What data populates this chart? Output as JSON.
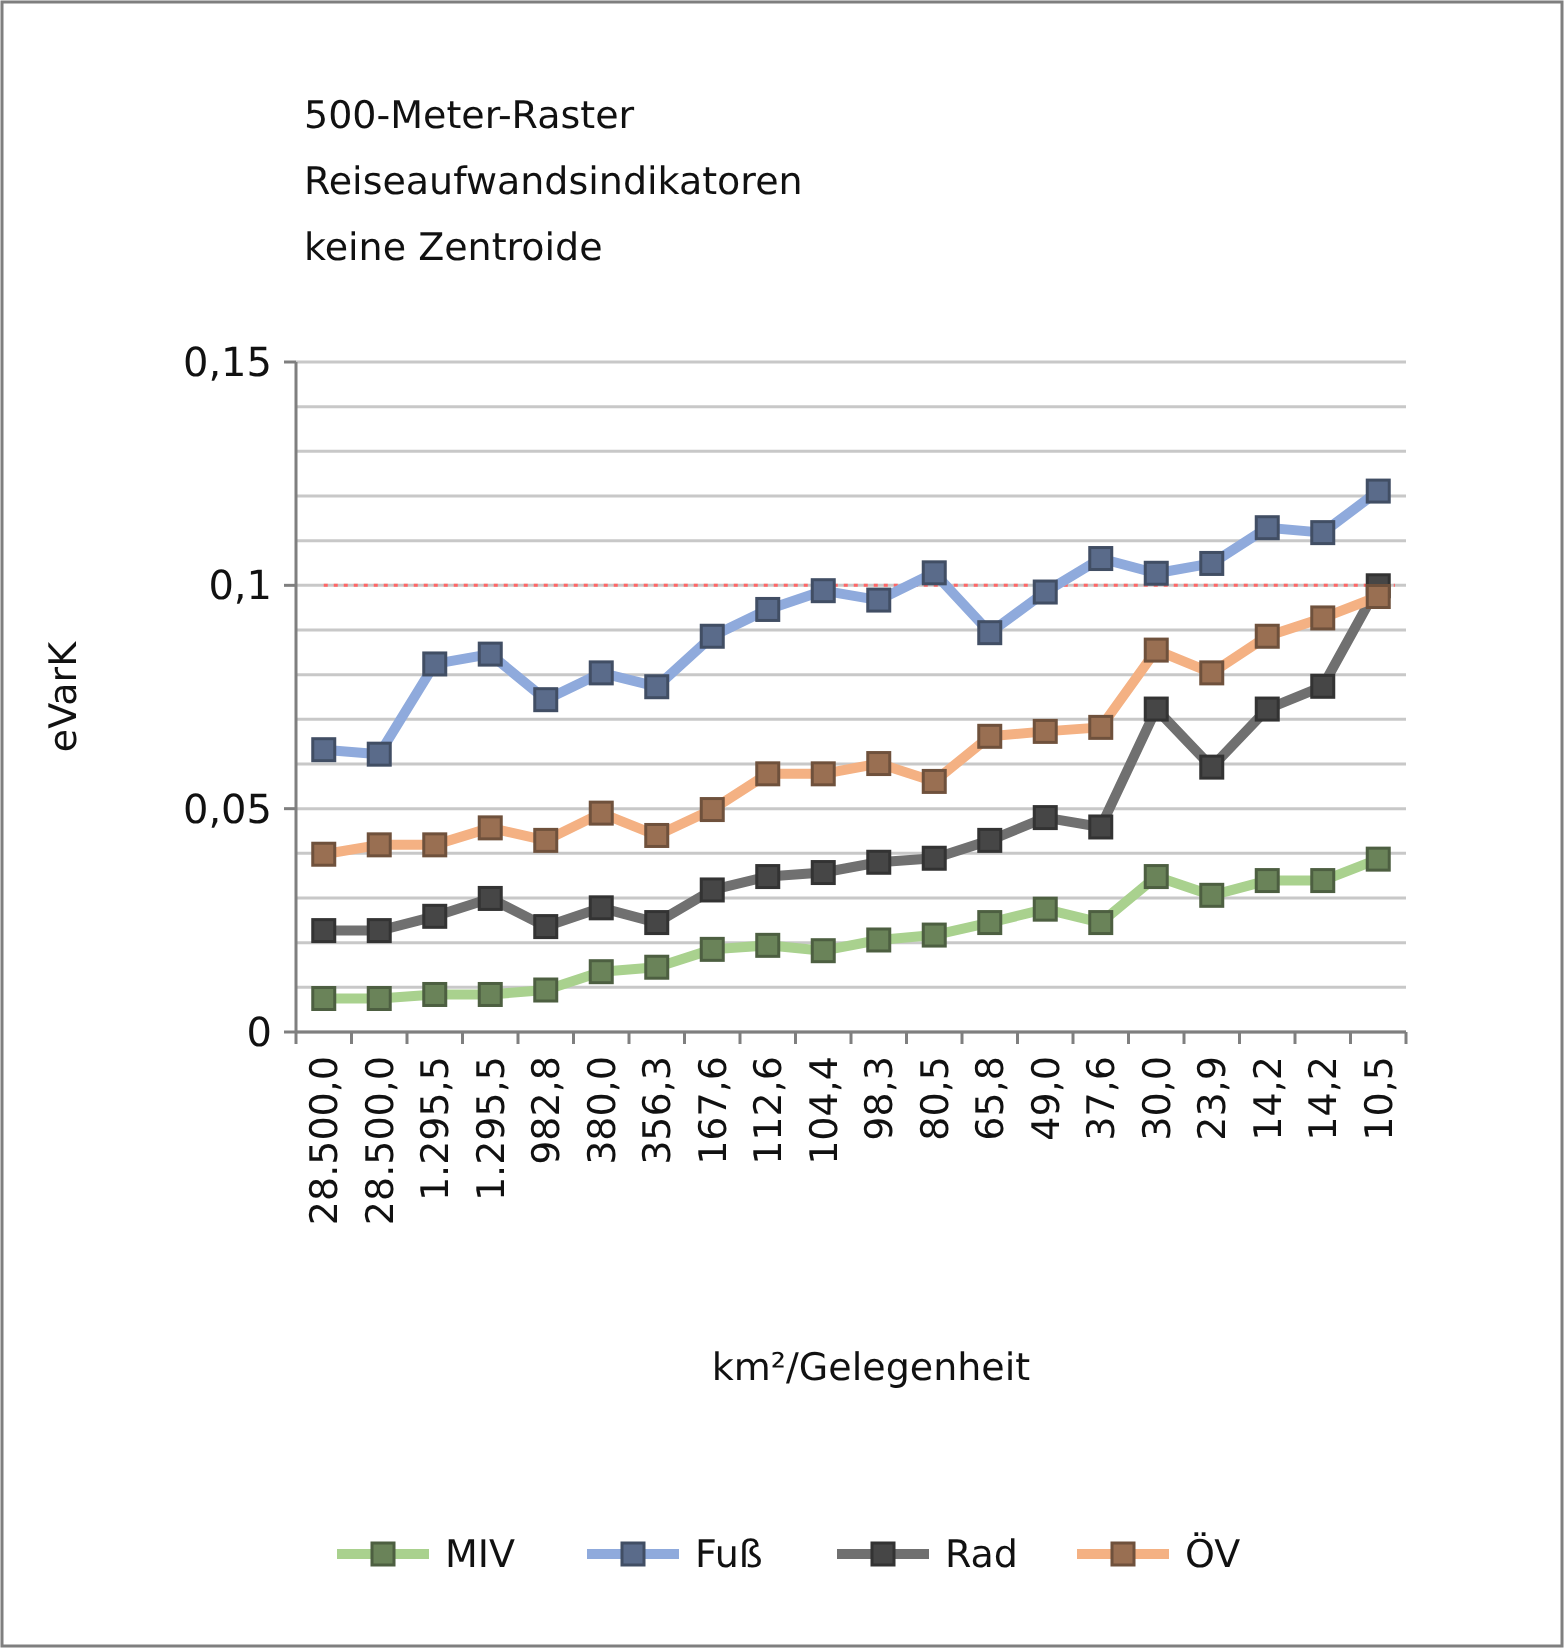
{
  "chart_data": {
    "type": "line",
    "title": "500-Meter-Raster\nReiseaufwandsindikatoren\nkeine Zentroide",
    "xlabel": "km²/Gelegenheit",
    "ylabel": "eVarK",
    "categories": [
      "28.500,0",
      "28.500,0",
      "1.295,5",
      "1.295,5",
      "982,8",
      "380,0",
      "356,3",
      "167,6",
      "112,6",
      "104,4",
      "98,3",
      "80,5",
      "65,8",
      "49,0",
      "37,6",
      "30,0",
      "23,9",
      "14,2",
      "14,2",
      "10,5"
    ],
    "series": [
      {
        "name": "MIV",
        "color": "#a9d18e",
        "values": [
          0.0075,
          0.0075,
          0.0084,
          0.0084,
          0.0094,
          0.0135,
          0.0145,
          0.0185,
          0.0194,
          0.0182,
          0.0206,
          0.0217,
          0.0245,
          0.0275,
          0.0245,
          0.0348,
          0.0306,
          0.0339,
          0.0339,
          0.0387
        ]
      },
      {
        "name": "Fuß",
        "color": "#8faadc",
        "values": [
          0.0632,
          0.0622,
          0.0824,
          0.0846,
          0.0744,
          0.0804,
          0.0773,
          0.0886,
          0.0946,
          0.0988,
          0.0967,
          0.1028,
          0.0894,
          0.0985,
          0.106,
          0.1027,
          0.1049,
          0.1129,
          0.1118,
          0.1211
        ]
      },
      {
        "name": "Rad",
        "color": "#707070",
        "values": [
          0.0227,
          0.0227,
          0.0259,
          0.0299,
          0.0236,
          0.0278,
          0.0245,
          0.0318,
          0.0348,
          0.0357,
          0.038,
          0.0389,
          0.0429,
          0.048,
          0.0459,
          0.0723,
          0.0593,
          0.0723,
          0.0774,
          0.0999
        ]
      },
      {
        "name": "ÖV",
        "color": "#f4b183",
        "values": [
          0.0398,
          0.0419,
          0.0419,
          0.0457,
          0.0429,
          0.049,
          0.044,
          0.0498,
          0.0578,
          0.0578,
          0.0601,
          0.0561,
          0.0662,
          0.0673,
          0.0682,
          0.0855,
          0.0804,
          0.0886,
          0.0927,
          0.0975
        ]
      }
    ],
    "ylim": [
      0,
      0.15
    ],
    "yticks": [
      {
        "value": 0,
        "label": "0"
      },
      {
        "value": 0.01,
        "label": null
      },
      {
        "value": 0.02,
        "label": null
      },
      {
        "value": 0.03,
        "label": null
      },
      {
        "value": 0.04,
        "label": null
      },
      {
        "value": 0.05,
        "label": "0,05"
      },
      {
        "value": 0.06,
        "label": null
      },
      {
        "value": 0.07,
        "label": null
      },
      {
        "value": 0.08,
        "label": null
      },
      {
        "value": 0.09,
        "label": null
      },
      {
        "value": 0.1,
        "label": "0,1"
      },
      {
        "value": 0.11,
        "label": null
      },
      {
        "value": 0.12,
        "label": null
      },
      {
        "value": 0.13,
        "label": null
      },
      {
        "value": 0.14,
        "label": null
      },
      {
        "value": 0.15,
        "label": "0,15"
      }
    ],
    "ref_lines": [
      {
        "axis": "y",
        "value": 0.1,
        "color": "#ff6666",
        "line_style": "dotted"
      }
    ],
    "grid": "y",
    "legend": "bottom",
    "marker": "square",
    "line_style": "solid"
  }
}
